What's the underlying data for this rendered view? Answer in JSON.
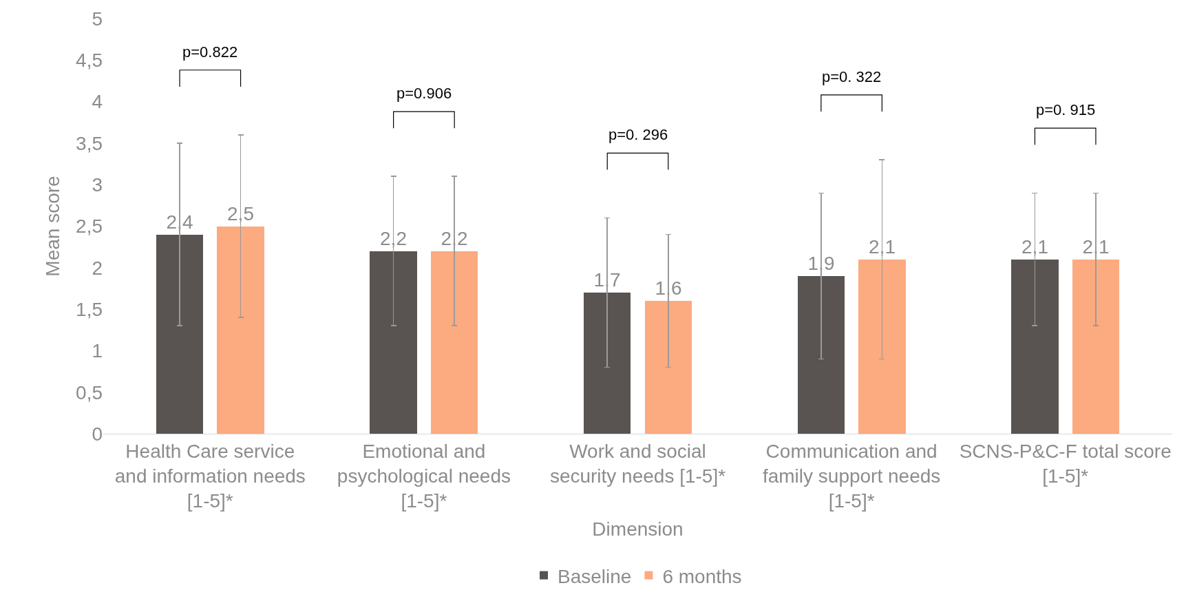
{
  "chart_data": {
    "type": "bar",
    "xlabel": "Dimension",
    "ylabel": "Mean score",
    "categories": [
      "Health Care service and information needs [1-5]*",
      "Emotional and psychological needs [1-5]*",
      "Work and social security needs [1-5]*",
      "Communication and family support needs [1-5]*",
      "SCNS-P&C-F total score [1-5]*"
    ],
    "series": [
      {
        "name": "Baseline",
        "color": "#595451",
        "values": [
          2.4,
          2.2,
          1.7,
          1.9,
          2.1
        ],
        "value_labels": [
          "2,4",
          "2,2",
          "1,7",
          "1,9",
          "2,1"
        ],
        "errors": [
          [
            1.3,
            3.5
          ],
          [
            1.3,
            3.1
          ],
          [
            0.8,
            2.6
          ],
          [
            0.9,
            2.9
          ],
          [
            1.3,
            2.9
          ]
        ]
      },
      {
        "name": "6 months",
        "color": "#fcaa7f",
        "values": [
          2.5,
          2.2,
          1.6,
          2.1,
          2.1
        ],
        "value_labels": [
          "2,5",
          "2,2",
          "1,6",
          "2,1",
          "2,1"
        ],
        "errors": [
          [
            1.4,
            3.6
          ],
          [
            1.3,
            3.1
          ],
          [
            0.8,
            2.4
          ],
          [
            0.9,
            3.3
          ],
          [
            1.3,
            2.9
          ]
        ]
      }
    ],
    "annotations": [
      "p=0.822",
      "p=0.906",
      "p=0. 296",
      "p=0. 322",
      "p=0. 915"
    ],
    "ylim": [
      0,
      5
    ],
    "yticks": [
      0,
      {
        "value": 0.5,
        "label": "0,5"
      },
      1,
      {
        "value": 1.5,
        "label": "1,5"
      },
      2,
      {
        "value": 2.5,
        "label": "2,5"
      },
      3,
      {
        "value": 3.5,
        "label": "3,5"
      },
      4,
      {
        "value": 4.5,
        "label": "4,5"
      },
      5
    ],
    "legend": "bottom"
  }
}
